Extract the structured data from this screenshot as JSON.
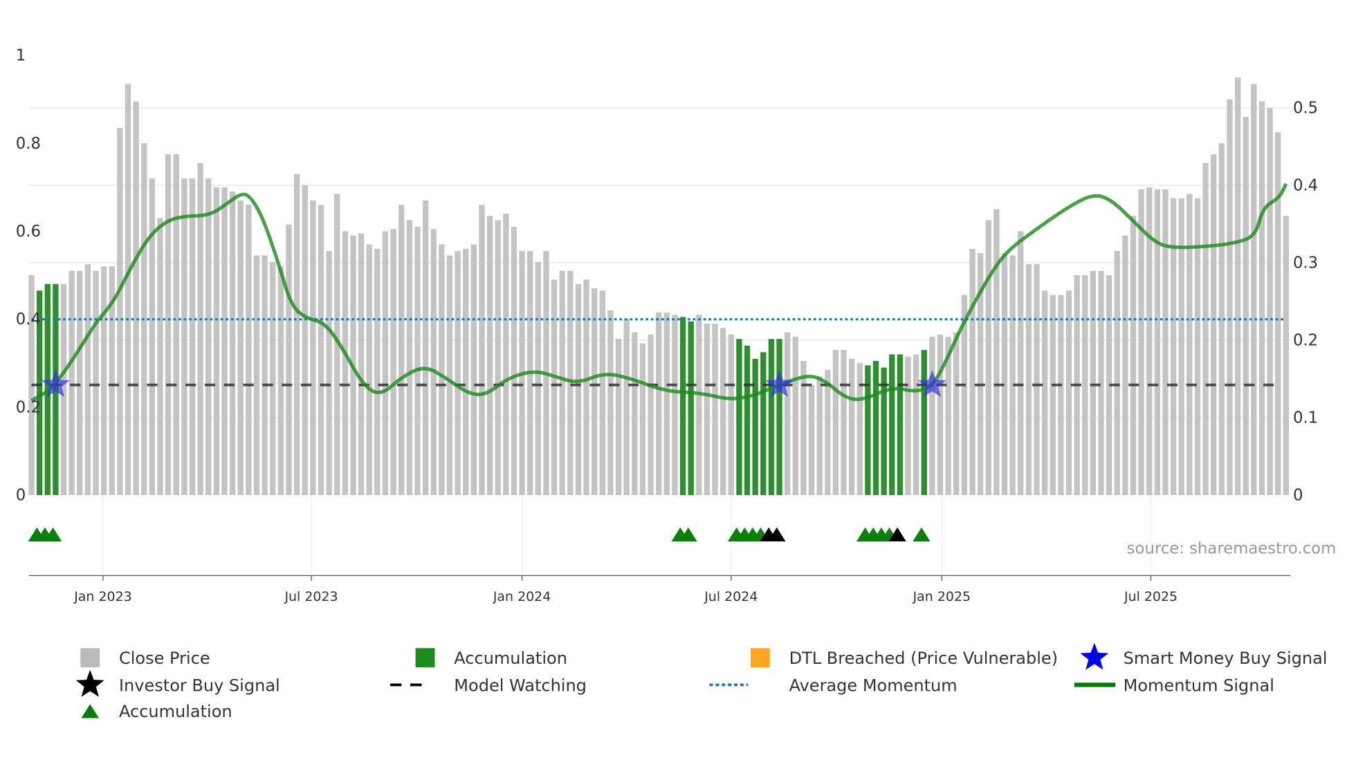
{
  "chart_data": {
    "type": "bar",
    "title": "",
    "source": "source: sharemaestro.com",
    "left_axis": {
      "range": [
        0,
        1
      ],
      "ticks": [
        "0",
        "0.2",
        "0.4",
        "0.6",
        "0.8",
        "1"
      ],
      "tick_values": [
        0,
        0.2,
        0.4,
        0.6,
        0.8,
        1
      ]
    },
    "right_axis": {
      "range": [
        0,
        0.568
      ],
      "ticks": [
        "0",
        "0.1",
        "0.2",
        "0.3",
        "0.4",
        "0.5"
      ],
      "tick_values": [
        0,
        0.1,
        0.2,
        0.3,
        0.4,
        0.5
      ]
    },
    "x_axis": {
      "unit": "weekly bar index",
      "ticks": [
        {
          "label": "Jan 2023",
          "index": 8.9
        },
        {
          "label": "Jul 2023",
          "index": 34.8
        },
        {
          "label": "Jan 2024",
          "index": 61.0
        },
        {
          "label": "Jul 2024",
          "index": 87.0
        },
        {
          "label": "Jan 2025",
          "index": 113.2
        },
        {
          "label": "Jul 2025",
          "index": 139.2
        }
      ]
    },
    "close_price": [
      0.5,
      0.465,
      0.48,
      0.48,
      0.48,
      0.51,
      0.51,
      0.525,
      0.51,
      0.52,
      0.52,
      0.835,
      0.935,
      0.895,
      0.8,
      0.72,
      0.63,
      0.775,
      0.775,
      0.72,
      0.72,
      0.755,
      0.72,
      0.7,
      0.7,
      0.69,
      0.67,
      0.66,
      0.545,
      0.545,
      0.53,
      0.52,
      0.615,
      0.73,
      0.705,
      0.67,
      0.66,
      0.555,
      0.685,
      0.6,
      0.59,
      0.595,
      0.57,
      0.56,
      0.6,
      0.605,
      0.66,
      0.625,
      0.61,
      0.67,
      0.605,
      0.57,
      0.545,
      0.555,
      0.56,
      0.57,
      0.66,
      0.635,
      0.625,
      0.64,
      0.61,
      0.555,
      0.555,
      0.53,
      0.555,
      0.49,
      0.51,
      0.51,
      0.48,
      0.49,
      0.47,
      0.465,
      0.42,
      0.355,
      0.4,
      0.37,
      0.345,
      0.365,
      0.415,
      0.415,
      0.41,
      0.405,
      0.395,
      0.41,
      0.39,
      0.39,
      0.38,
      0.365,
      0.355,
      0.34,
      0.31,
      0.325,
      0.355,
      0.355,
      0.37,
      0.36,
      0.305,
      0.25,
      0.27,
      0.285,
      0.33,
      0.33,
      0.31,
      0.3,
      0.295,
      0.305,
      0.29,
      0.32,
      0.32,
      0.315,
      0.32,
      0.33,
      0.36,
      0.365,
      0.36,
      0.37,
      0.455,
      0.56,
      0.55,
      0.625,
      0.65,
      0.55,
      0.545,
      0.6,
      0.525,
      0.525,
      0.465,
      0.455,
      0.455,
      0.465,
      0.5,
      0.5,
      0.51,
      0.51,
      0.5,
      0.555,
      0.59,
      0.635,
      0.695,
      0.7,
      0.695,
      0.695,
      0.675,
      0.675,
      0.685,
      0.675,
      0.755,
      0.775,
      0.8,
      0.9,
      0.95,
      0.86,
      0.935,
      0.895,
      0.88,
      0.825,
      0.635
    ],
    "accumulation_bars": [
      1,
      2,
      3,
      81,
      82,
      88,
      89,
      90,
      91,
      92,
      93,
      104,
      105,
      106,
      107,
      108,
      111
    ],
    "momentum_signal": [
      [
        0,
        0.122
      ],
      [
        2.6,
        0.137
      ],
      [
        5.9,
        0.187
      ],
      [
        8.0,
        0.223
      ],
      [
        10.2,
        0.249
      ],
      [
        12.4,
        0.295
      ],
      [
        14.6,
        0.334
      ],
      [
        16.8,
        0.354
      ],
      [
        18.9,
        0.36
      ],
      [
        22.2,
        0.361
      ],
      [
        24.4,
        0.377
      ],
      [
        26.0,
        0.389
      ],
      [
        27.1,
        0.387
      ],
      [
        28.7,
        0.36
      ],
      [
        30.7,
        0.3
      ],
      [
        32.3,
        0.244
      ],
      [
        34.2,
        0.228
      ],
      [
        36.4,
        0.223
      ],
      [
        38.5,
        0.193
      ],
      [
        41.2,
        0.142
      ],
      [
        43.4,
        0.128
      ],
      [
        46.1,
        0.153
      ],
      [
        48.9,
        0.167
      ],
      [
        51.6,
        0.151
      ],
      [
        54.3,
        0.131
      ],
      [
        56.5,
        0.129
      ],
      [
        59.2,
        0.151
      ],
      [
        62.5,
        0.161
      ],
      [
        65.2,
        0.153
      ],
      [
        67.9,
        0.144
      ],
      [
        71.2,
        0.158
      ],
      [
        74.4,
        0.151
      ],
      [
        78.8,
        0.134
      ],
      [
        83.1,
        0.132
      ],
      [
        86.9,
        0.123
      ],
      [
        89.7,
        0.128
      ],
      [
        92.9,
        0.142
      ],
      [
        96.7,
        0.156
      ],
      [
        98.9,
        0.146
      ],
      [
        101.1,
        0.126
      ],
      [
        103.3,
        0.122
      ],
      [
        107.1,
        0.14
      ],
      [
        109.8,
        0.133
      ],
      [
        112.0,
        0.14
      ],
      [
        113.6,
        0.17
      ],
      [
        115.8,
        0.221
      ],
      [
        119.1,
        0.283
      ],
      [
        121.2,
        0.314
      ],
      [
        124.5,
        0.34
      ],
      [
        128.9,
        0.372
      ],
      [
        132.1,
        0.389
      ],
      [
        134.3,
        0.381
      ],
      [
        137.0,
        0.354
      ],
      [
        139.7,
        0.326
      ],
      [
        141.9,
        0.319
      ],
      [
        146.3,
        0.321
      ],
      [
        149.5,
        0.325
      ],
      [
        152.2,
        0.334
      ],
      [
        153.1,
        0.371
      ],
      [
        155.2,
        0.384
      ],
      [
        156.0,
        0.402
      ]
    ],
    "average_momentum": 0.4,
    "model_watching": 0.25,
    "smart_money_buy_signals": [
      3,
      93,
      112
    ],
    "investor_buy_signals": [
      92,
      93,
      108
    ],
    "accumulation_markers": [
      1,
      2,
      3,
      81,
      82,
      88,
      89,
      90,
      91,
      104,
      105,
      106,
      107,
      111
    ],
    "legend": [
      {
        "label": "Close Price",
        "symbol": "square",
        "color": "#bbbbbb"
      },
      {
        "label": "Accumulation",
        "symbol": "square",
        "color": "#1a8c1a"
      },
      {
        "label": "DTL Breached (Price Vulnerable)",
        "symbol": "square",
        "color": "#ffa51f"
      },
      {
        "label": "Smart Money Buy Signal",
        "symbol": "star",
        "color": "#0000ee"
      },
      {
        "label": "Investor Buy Signal",
        "symbol": "star",
        "color": "#000000"
      },
      {
        "label": "Model Watching",
        "symbol": "dash",
        "color": "#000000"
      },
      {
        "label": "Average Momentum",
        "symbol": "dot",
        "color": "#1f77b4"
      },
      {
        "label": "Momentum Signal",
        "symbol": "line",
        "color": "#008000"
      },
      {
        "label": "Accumulation",
        "symbol": "triangle",
        "color": "#008000"
      }
    ]
  }
}
